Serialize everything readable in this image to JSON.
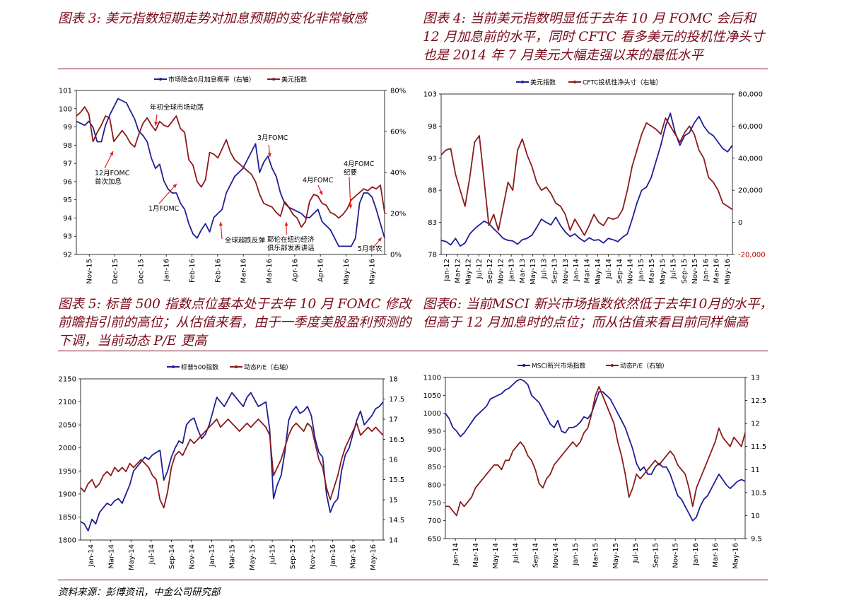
{
  "captions": {
    "fig3": "图表 3:  美元指数短期走势对加息预期的变化非常敏感",
    "fig4": "图表 4:  当前美元指数明显低于去年 10 月 FOMC 会后和 12 月加息前的水平，同时 CFTC 看多美元的投机性净头寸也是 2014 年 7 月美元大幅走强以来的最低水平",
    "fig5": "图表 5:  标普 500 指数点位基本处于去年 10 月 FOMC 修改前瞻指引前的高位；从估值来看，由于一季度美股盈利预测的下调，当前动态 P/E 更高",
    "fig6": "图表6:  当前MSCI 新兴市场指数依然低于去年10月的水平，但高于 12 月加息时的点位；而从估值来看目前同样偏高"
  },
  "source": "资料来源：彭博资讯，中金公司研究部",
  "colors": {
    "blue": "#1f1f96",
    "red": "#8b1a1a",
    "caption": "#7a0c1a"
  },
  "chart_data": [
    {
      "id": "fig3",
      "type": "line",
      "x_tick_labels": [
        "Nov-15",
        "Dec-15",
        "Dec-15",
        "Jan-16",
        "Feb-16",
        "Feb-16",
        "Mar-16",
        "Mar-16",
        "Apr-16",
        "Apr-16",
        "May-16",
        "May-16"
      ],
      "ylim": [
        92,
        101
      ],
      "y_ticks": [
        "92",
        "93",
        "94",
        "95",
        "96",
        "97",
        "98",
        "99",
        "100",
        "101"
      ],
      "ylim_right": [
        0,
        80
      ],
      "y_ticks_right": [
        "0%",
        "20%",
        "40%",
        "60%",
        "80%"
      ],
      "legend_position": "top",
      "series": [
        {
          "name": "市场隐含6月加息概率（右轴）",
          "color": "#1f1f96",
          "axis": "right",
          "values": [
            65,
            64,
            63,
            65,
            62,
            55,
            55,
            63,
            68,
            72,
            76,
            75,
            74,
            70,
            66,
            60,
            58,
            55,
            47,
            42,
            44,
            36,
            32,
            30,
            30,
            25,
            22,
            15,
            10,
            8,
            12,
            15,
            11,
            18,
            20,
            22,
            30,
            34,
            38,
            40,
            42,
            46,
            50,
            54,
            40,
            45,
            48,
            42,
            38,
            30,
            25,
            23,
            22,
            21,
            20,
            18,
            18,
            20,
            22,
            16,
            14,
            12,
            8,
            4,
            4,
            4,
            4,
            8,
            25,
            30,
            30,
            28,
            22,
            15,
            8
          ]
        },
        {
          "name": "美元指数",
          "color": "#8b1a1a",
          "axis": "left",
          "values": [
            99.6,
            99.8,
            100.1,
            99.7,
            98.2,
            98.7,
            99.1,
            99.6,
            99.5,
            98.2,
            98.5,
            98.8,
            98.5,
            98.1,
            97.9,
            98.6,
            99.2,
            99.5,
            99.1,
            98.8,
            99.3,
            99.1,
            99.0,
            99.3,
            99.6,
            98.9,
            98.7,
            97.2,
            96.9,
            96.0,
            95.7,
            96.1,
            97.6,
            97.5,
            97.3,
            97.8,
            98.3,
            97.6,
            97.2,
            97.0,
            96.8,
            96.6,
            96.4,
            96.0,
            95.3,
            94.8,
            94.7,
            94.6,
            94.3,
            94.1,
            94.9,
            94.6,
            94.2,
            94.0,
            93.5,
            93.8,
            94.9,
            95.3,
            95.2,
            94.8,
            94.7,
            94.3,
            94.2,
            94.0,
            94.2,
            94.5,
            95.0,
            95.2,
            95.4,
            95.6,
            95.5,
            95.7,
            95.6,
            95.8,
            94.3
          ]
        }
      ],
      "annotations": [
        "年初全球市场动荡",
        "12月FOMC 首次加息",
        "1月FOMC",
        "3月FOMC",
        "4月FOMC",
        "4月FOMC 纪要",
        "全球超跌反弹",
        "耶伦在纽约经济 俱乐部发表讲话",
        "5月非农"
      ]
    },
    {
      "id": "fig4",
      "type": "line",
      "x_tick_labels": [
        "Jan-12",
        "Mar-12",
        "May-12",
        "Jul-12",
        "Sep-12",
        "Nov-12",
        "Jan-13",
        "Mar-13",
        "May-13",
        "Jul-13",
        "Sep-13",
        "Nov-13",
        "Jan-14",
        "Mar-14",
        "May-14",
        "Jul-14",
        "Sep-14",
        "Nov-14",
        "Jan-15",
        "Mar-15",
        "May-15",
        "Jul-15",
        "Sep-15",
        "Nov-15",
        "Jan-16",
        "Mar-16",
        "May-16"
      ],
      "ylim": [
        78,
        103
      ],
      "y_ticks": [
        "78",
        "83",
        "88",
        "93",
        "98",
        "103"
      ],
      "ylim_right": [
        -20000,
        80000
      ],
      "y_ticks_right": [
        "-20,000",
        "0",
        "20,000",
        "40,000",
        "60,000",
        "80,000"
      ],
      "legend_position": "top",
      "series": [
        {
          "name": "美元指数",
          "color": "#1f1f96",
          "axis": "left",
          "values": [
            80.2,
            80.0,
            79.5,
            80.5,
            79.3,
            79.8,
            81.2,
            82.0,
            82.6,
            83.2,
            82.8,
            82.0,
            81.3,
            80.5,
            80.2,
            80.1,
            79.6,
            80.3,
            80.5,
            81.0,
            82.2,
            83.5,
            83.0,
            82.6,
            83.8,
            82.5,
            81.5,
            80.8,
            81.2,
            80.5,
            80.0,
            80.6,
            80.2,
            80.3,
            79.8,
            80.5,
            80.3,
            80.0,
            80.7,
            81.2,
            83.5,
            86.0,
            88.0,
            88.5,
            90.0,
            92.5,
            95.0,
            98.0,
            100.0,
            97.0,
            95.0,
            96.5,
            97.0,
            98.5,
            99.5,
            98.0,
            97.0,
            96.5,
            95.5,
            94.5,
            94.0,
            95.0
          ]
        },
        {
          "name": "CFTC投机性净头寸（右轴）",
          "color": "#8b1a1a",
          "axis": "right",
          "values": [
            42000,
            45000,
            46000,
            30000,
            20000,
            10000,
            28000,
            50000,
            54000,
            26000,
            -2000,
            5000,
            -5000,
            10000,
            25000,
            20000,
            45000,
            52000,
            42000,
            35000,
            25000,
            20000,
            22000,
            18000,
            12000,
            10000,
            5000,
            -5000,
            2000,
            -3000,
            -8000,
            -2000,
            5000,
            0,
            -2000,
            3000,
            2000,
            3000,
            8000,
            20000,
            35000,
            45000,
            55000,
            62000,
            60000,
            58000,
            55000,
            65000,
            60000,
            55000,
            50000,
            56000,
            60000,
            55000,
            45000,
            40000,
            28000,
            25000,
            20000,
            12000,
            10000,
            8000
          ]
        }
      ]
    },
    {
      "id": "fig5",
      "type": "line",
      "x_tick_labels": [
        "Jan-14",
        "Mar-14",
        "May-14",
        "Jul-14",
        "Sep-14",
        "Nov-14",
        "Jan-15",
        "Mar-15",
        "May-15",
        "Jul-15",
        "Sep-15",
        "Nov-15",
        "Jan-16",
        "Mar-16",
        "May-16"
      ],
      "ylim": [
        1800,
        2150
      ],
      "y_ticks": [
        "1800",
        "1850",
        "1900",
        "1950",
        "2000",
        "2050",
        "2100",
        "2150"
      ],
      "ylim_right": [
        14,
        18
      ],
      "y_ticks_right": [
        "14",
        "14.5",
        "15",
        "15.5",
        "16",
        "16.5",
        "17",
        "17.5",
        "18"
      ],
      "legend_position": "top",
      "series": [
        {
          "name": "标普500指数",
          "color": "#1f1f96",
          "axis": "left",
          "values": [
            1840,
            1835,
            1820,
            1845,
            1835,
            1860,
            1870,
            1880,
            1875,
            1885,
            1890,
            1880,
            1900,
            1920,
            1950,
            1960,
            1970,
            1980,
            1975,
            1985,
            1990,
            1995,
            1930,
            1950,
            1980,
            2000,
            2015,
            2010,
            2050,
            2060,
            2065,
            2040,
            2020,
            2030,
            2050,
            2080,
            2110,
            2100,
            2090,
            2105,
            2120,
            2110,
            2100,
            2090,
            2110,
            2120,
            2105,
            2090,
            2095,
            2100,
            2040,
            1890,
            1920,
            1940,
            1990,
            2060,
            2080,
            2090,
            2075,
            2080,
            2090,
            2070,
            2020,
            1990,
            1980,
            1900,
            1860,
            1880,
            1890,
            1950,
            1985,
            2000,
            2030,
            2060,
            2080,
            2050,
            2060,
            2070,
            2085,
            2090,
            2100
          ]
        },
        {
          "name": "动态P/E（右轴）",
          "color": "#8b1a1a",
          "axis": "right",
          "values": [
            15.3,
            15.2,
            15.4,
            15.5,
            15.3,
            15.4,
            15.6,
            15.7,
            15.6,
            15.8,
            15.7,
            15.8,
            15.7,
            15.9,
            15.8,
            15.9,
            16.0,
            15.9,
            15.8,
            15.6,
            15.5,
            15.0,
            14.8,
            15.2,
            15.8,
            16.1,
            16.2,
            16.1,
            16.3,
            16.5,
            16.4,
            16.5,
            16.6,
            16.7,
            16.8,
            16.9,
            17.0,
            16.8,
            16.9,
            17.0,
            16.9,
            16.8,
            16.7,
            16.8,
            16.9,
            16.8,
            16.9,
            17.0,
            16.9,
            16.8,
            16.6,
            15.6,
            15.8,
            16.0,
            16.3,
            16.6,
            16.8,
            16.9,
            16.8,
            16.7,
            16.9,
            16.8,
            16.4,
            16.0,
            15.8,
            15.3,
            15.0,
            15.3,
            15.6,
            16.0,
            16.3,
            16.5,
            16.7,
            16.9,
            16.6,
            16.7,
            16.8,
            16.7,
            16.8,
            16.7,
            16.6
          ]
        }
      ]
    },
    {
      "id": "fig6",
      "type": "line",
      "x_tick_labels": [
        "Jan-14",
        "Mar-14",
        "May-14",
        "Jul-14",
        "Sep-14",
        "Nov-14",
        "Jan-15",
        "Mar-15",
        "May-15",
        "Jul-15",
        "Sep-15",
        "Nov-15",
        "Jan-16",
        "Mar-16",
        "May-16"
      ],
      "ylim": [
        650,
        1100
      ],
      "y_ticks": [
        "650",
        "700",
        "750",
        "800",
        "850",
        "900",
        "950",
        "1000",
        "1050",
        "1100"
      ],
      "ylim_right": [
        9.5,
        13
      ],
      "y_ticks_right": [
        "9.5",
        "10",
        "10.5",
        "11",
        "11.5",
        "12",
        "12.5",
        "13"
      ],
      "legend_position": "top",
      "series": [
        {
          "name": "MSCI新兴市场指数",
          "color": "#1f1f96",
          "axis": "left",
          "values": [
            1000,
            985,
            960,
            950,
            935,
            945,
            960,
            975,
            990,
            1000,
            1010,
            1020,
            1040,
            1045,
            1050,
            1055,
            1065,
            1070,
            1080,
            1090,
            1095,
            1090,
            1080,
            1050,
            1040,
            1030,
            1010,
            990,
            970,
            960,
            980,
            950,
            945,
            960,
            960,
            965,
            975,
            990,
            985,
            1000,
            1030,
            1060,
            1060,
            1050,
            1040,
            1020,
            1000,
            980,
            960,
            930,
            900,
            860,
            840,
            850,
            830,
            830,
            850,
            860,
            850,
            850,
            830,
            800,
            770,
            760,
            740,
            720,
            700,
            710,
            740,
            760,
            770,
            790,
            810,
            830,
            815,
            800,
            790,
            800,
            810,
            815,
            810
          ]
        },
        {
          "name": "动态P/E（右轴）",
          "color": "#8b1a1a",
          "axis": "right",
          "values": [
            10.2,
            10.2,
            10.1,
            10.0,
            10.3,
            10.2,
            10.3,
            10.4,
            10.6,
            10.7,
            10.8,
            10.9,
            11.0,
            11.1,
            11.1,
            11.0,
            11.2,
            11.2,
            11.4,
            11.5,
            11.6,
            11.5,
            11.3,
            11.2,
            11.0,
            10.7,
            10.6,
            10.8,
            10.9,
            11.1,
            11.2,
            11.3,
            11.4,
            11.5,
            11.6,
            11.5,
            11.6,
            11.8,
            11.9,
            12.2,
            12.6,
            12.8,
            12.6,
            12.4,
            12.2,
            12.0,
            11.6,
            11.3,
            10.9,
            10.4,
            10.6,
            10.9,
            10.8,
            10.9,
            11.0,
            11.1,
            11.2,
            11.1,
            11.2,
            11.3,
            11.4,
            11.3,
            11.1,
            11.0,
            10.9,
            10.6,
            10.2,
            10.6,
            10.8,
            11.0,
            11.2,
            11.4,
            11.6,
            11.9,
            11.7,
            11.6,
            11.5,
            11.7,
            11.6,
            11.5,
            11.8
          ]
        }
      ]
    }
  ]
}
